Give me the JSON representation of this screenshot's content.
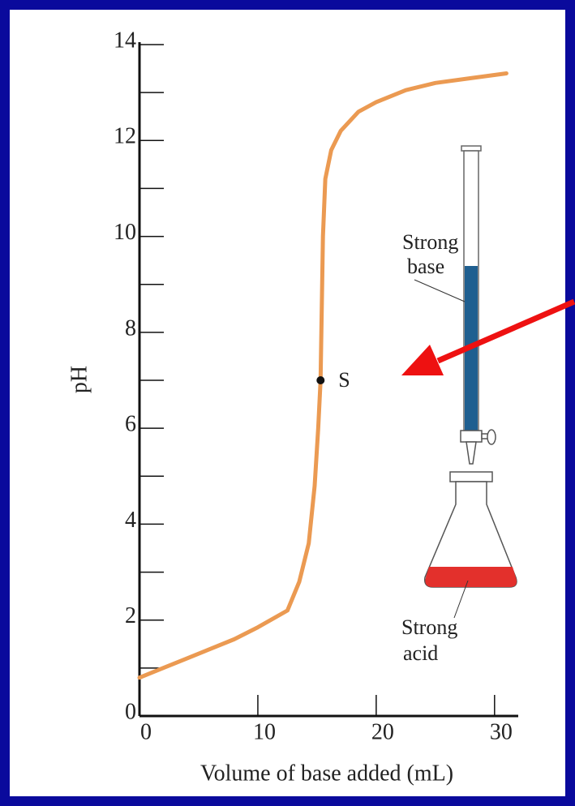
{
  "chart_data": {
    "type": "line",
    "x_label": "Volume of base added (mL)",
    "y_label": "pH",
    "series": [
      {
        "color": "#eb9a52",
        "x": [
          0,
          2,
          4,
          6,
          8,
          10,
          12.5,
          13.5,
          14.3,
          14.8,
          15.1,
          15.3,
          15.4,
          15.5,
          15.7,
          16.2,
          17,
          18.5,
          20,
          22.5,
          25,
          28,
          31
        ],
        "values": [
          0.8,
          1.0,
          1.2,
          1.4,
          1.6,
          1.85,
          2.2,
          2.8,
          3.6,
          4.8,
          6,
          7,
          8.5,
          10,
          11.2,
          11.8,
          12.2,
          12.6,
          12.8,
          13.05,
          13.2,
          13.3,
          13.4
        ]
      }
    ],
    "point": {
      "label": "S",
      "x": 15.3,
      "y": 7
    },
    "xlim": [
      0,
      32
    ],
    "xticks": [
      0,
      10,
      20,
      30
    ],
    "ylim": [
      0,
      14
    ],
    "yticks": [
      0,
      2,
      4,
      6,
      8,
      10,
      12,
      14
    ],
    "yticks_minor": [
      1,
      3,
      5,
      7,
      9,
      11,
      13
    ],
    "base_label": [
      "Strong",
      "base"
    ],
    "acid_label": [
      "Strong",
      "acid"
    ]
  }
}
